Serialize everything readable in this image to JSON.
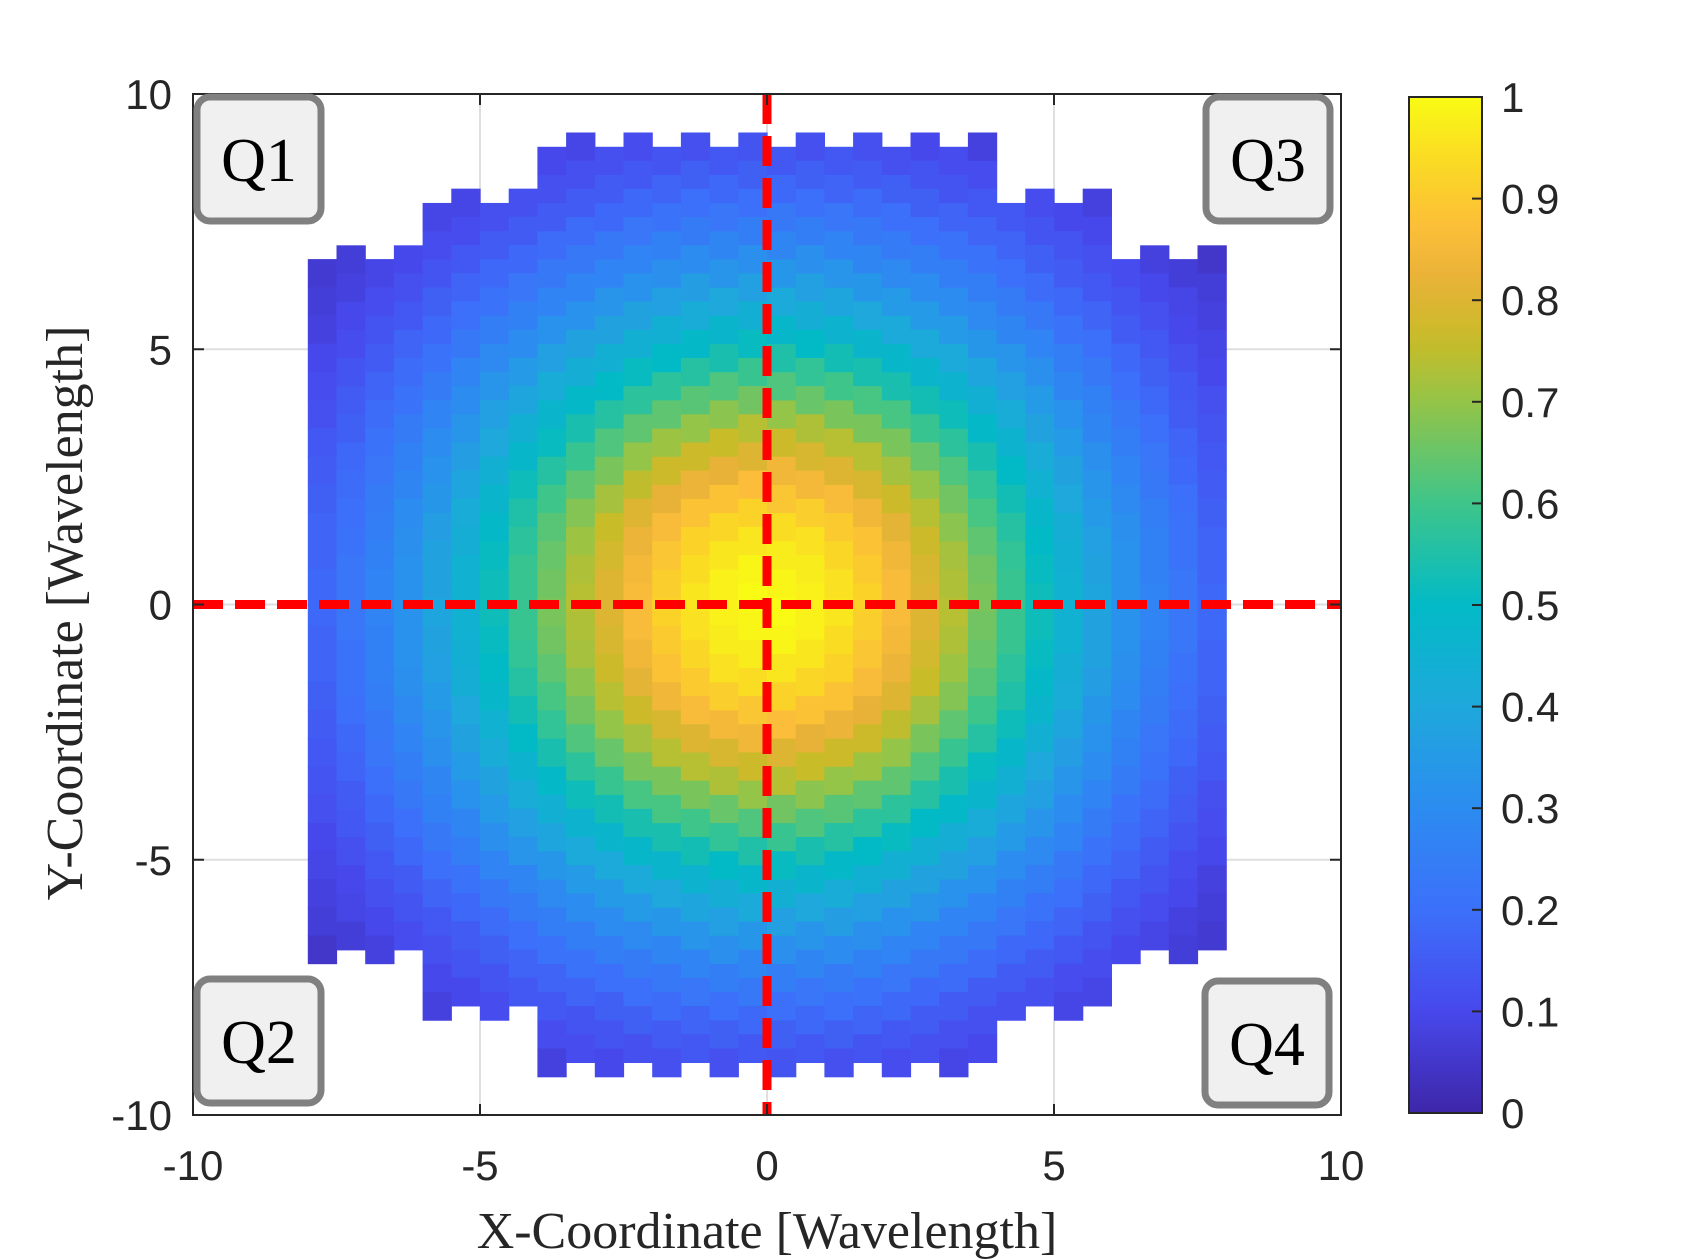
{
  "chart_data": {
    "type": "heatmap",
    "xlabel": "X-Coordinate [Wavelength]",
    "ylabel": "Y-Coordinate [Wavelength]",
    "xlim": [
      -10,
      10
    ],
    "ylim": [
      -10,
      10
    ],
    "xticks": [
      -10,
      -5,
      0,
      5,
      10
    ],
    "yticks": [
      -10,
      -5,
      0,
      5,
      10
    ],
    "xtick_labels": [
      "-10",
      "-5",
      "0",
      "5",
      "10"
    ],
    "ytick_labels": [
      "-10",
      "-5",
      "0",
      "5",
      "10"
    ],
    "grid": true,
    "colorbar": {
      "colormap": "parula",
      "range": [
        0,
        1
      ],
      "ticks": [
        0,
        0.1,
        0.2,
        0.3,
        0.4,
        0.5,
        0.6,
        0.7,
        0.8,
        0.9,
        1
      ],
      "tick_labels": [
        "0",
        "0.1",
        "0.2",
        "0.3",
        "0.4",
        "0.5",
        "0.6",
        "0.7",
        "0.8",
        "0.9",
        "1"
      ],
      "placement": "right"
    },
    "reference_lines": [
      {
        "orientation": "vertical",
        "value": 0,
        "style": "dashed",
        "color": "#ff0000"
      },
      {
        "orientation": "horizontal",
        "value": 0,
        "style": "dashed",
        "color": "#ff0000"
      }
    ],
    "quadrant_labels": [
      {
        "text": "Q1",
        "corner": "top-left"
      },
      {
        "text": "Q3",
        "corner": "top-right"
      },
      {
        "text": "Q2",
        "corner": "bottom-left"
      },
      {
        "text": "Q4",
        "corner": "bottom-right"
      }
    ],
    "cell_width": 0.5,
    "cell_height": 0.552,
    "columns": [
      {
        "x": -7.75,
        "y_top": 6.49,
        "z": [
          0.06,
          0.07,
          0.08,
          0.1,
          0.11,
          0.12,
          0.14,
          0.15,
          0.16,
          0.17,
          0.17,
          0.18,
          0.18,
          0.17,
          0.17,
          0.16,
          0.15,
          0.14,
          0.13,
          0.12,
          0.1,
          0.09,
          0.08,
          0.07,
          0.05
        ]
      },
      {
        "x": -7.25,
        "y_top": 6.76,
        "z": [
          0.07,
          0.08,
          0.1,
          0.11,
          0.13,
          0.15,
          0.16,
          0.18,
          0.19,
          0.2,
          0.21,
          0.22,
          0.22,
          0.22,
          0.21,
          0.21,
          0.2,
          0.18,
          0.17,
          0.15,
          0.14,
          0.12,
          0.1,
          0.09,
          0.07
        ]
      },
      {
        "x": -6.75,
        "y_top": 6.49,
        "z": [
          0.09,
          0.11,
          0.13,
          0.15,
          0.17,
          0.19,
          0.21,
          0.22,
          0.24,
          0.25,
          0.26,
          0.27,
          0.27,
          0.26,
          0.26,
          0.25,
          0.23,
          0.22,
          0.2,
          0.18,
          0.16,
          0.14,
          0.12,
          0.1,
          0.08
        ]
      },
      {
        "x": -6.25,
        "y_top": 6.76,
        "z": [
          0.1,
          0.12,
          0.14,
          0.17,
          0.19,
          0.21,
          0.24,
          0.26,
          0.28,
          0.3,
          0.31,
          0.32,
          0.32,
          0.32,
          0.32,
          0.31,
          0.29,
          0.27,
          0.25,
          0.23,
          0.2,
          0.18,
          0.15,
          0.13,
          0.11
        ]
      },
      {
        "x": -5.75,
        "y_top": 7.59,
        "z": [
          0.09,
          0.11,
          0.13,
          0.16,
          0.18,
          0.21,
          0.24,
          0.27,
          0.3,
          0.32,
          0.34,
          0.36,
          0.38,
          0.38,
          0.39,
          0.38,
          0.37,
          0.35,
          0.33,
          0.31,
          0.28,
          0.26,
          0.23,
          0.2,
          0.17,
          0.14,
          0.12,
          0.1,
          0.08
        ]
      },
      {
        "x": -5.25,
        "y_top": 7.87,
        "z": [
          0.09,
          0.11,
          0.14,
          0.17,
          0.2,
          0.23,
          0.27,
          0.3,
          0.33,
          0.36,
          0.39,
          0.42,
          0.43,
          0.45,
          0.45,
          0.45,
          0.44,
          0.43,
          0.4,
          0.38,
          0.35,
          0.32,
          0.28,
          0.25,
          0.21,
          0.18,
          0.15,
          0.13,
          0.1
        ]
      },
      {
        "x": -4.75,
        "y_top": 7.59,
        "z": [
          0.12,
          0.15,
          0.18,
          0.21,
          0.25,
          0.29,
          0.33,
          0.37,
          0.4,
          0.44,
          0.47,
          0.49,
          0.51,
          0.52,
          0.52,
          0.51,
          0.5,
          0.48,
          0.45,
          0.42,
          0.38,
          0.35,
          0.31,
          0.27,
          0.23,
          0.19,
          0.16,
          0.13,
          0.11
        ]
      },
      {
        "x": -4.25,
        "y_top": 7.87,
        "z": [
          0.12,
          0.15,
          0.18,
          0.22,
          0.26,
          0.3,
          0.35,
          0.39,
          0.44,
          0.48,
          0.52,
          0.55,
          0.57,
          0.59,
          0.59,
          0.59,
          0.58,
          0.56,
          0.53,
          0.5,
          0.46,
          0.42,
          0.37,
          0.33,
          0.28,
          0.24,
          0.2,
          0.17,
          0.14
        ]
      },
      {
        "x": -3.75,
        "y_top": 8.69,
        "z": [
          0.1,
          0.12,
          0.15,
          0.19,
          0.23,
          0.27,
          0.32,
          0.37,
          0.42,
          0.47,
          0.51,
          0.56,
          0.6,
          0.63,
          0.65,
          0.66,
          0.67,
          0.66,
          0.64,
          0.61,
          0.58,
          0.54,
          0.49,
          0.44,
          0.39,
          0.34,
          0.29,
          0.25,
          0.21,
          0.17,
          0.14,
          0.11,
          0.08
        ]
      },
      {
        "x": -3.25,
        "y_top": 8.97,
        "z": [
          0.09,
          0.12,
          0.15,
          0.19,
          0.23,
          0.27,
          0.32,
          0.38,
          0.43,
          0.49,
          0.54,
          0.59,
          0.64,
          0.68,
          0.71,
          0.73,
          0.74,
          0.73,
          0.72,
          0.69,
          0.66,
          0.62,
          0.57,
          0.52,
          0.46,
          0.41,
          0.35,
          0.3,
          0.25,
          0.21,
          0.17,
          0.13,
          0.11
        ]
      },
      {
        "x": -2.75,
        "y_top": 8.69,
        "z": [
          0.12,
          0.15,
          0.18,
          0.23,
          0.27,
          0.33,
          0.38,
          0.44,
          0.5,
          0.56,
          0.62,
          0.67,
          0.72,
          0.76,
          0.78,
          0.8,
          0.8,
          0.79,
          0.77,
          0.74,
          0.7,
          0.65,
          0.59,
          0.53,
          0.47,
          0.41,
          0.35,
          0.3,
          0.25,
          0.2,
          0.16,
          0.13,
          0.1
        ]
      },
      {
        "x": -2.25,
        "y_top": 8.97,
        "z": [
          0.11,
          0.14,
          0.18,
          0.22,
          0.27,
          0.32,
          0.38,
          0.44,
          0.51,
          0.57,
          0.64,
          0.7,
          0.75,
          0.8,
          0.83,
          0.85,
          0.86,
          0.86,
          0.84,
          0.81,
          0.77,
          0.72,
          0.67,
          0.61,
          0.54,
          0.48,
          0.41,
          0.35,
          0.29,
          0.24,
          0.2,
          0.16,
          0.12
        ]
      },
      {
        "x": -1.75,
        "y_top": 8.69,
        "z": [
          0.13,
          0.17,
          0.21,
          0.26,
          0.31,
          0.37,
          0.44,
          0.5,
          0.57,
          0.64,
          0.71,
          0.77,
          0.82,
          0.86,
          0.89,
          0.91,
          0.92,
          0.9,
          0.88,
          0.84,
          0.79,
          0.74,
          0.67,
          0.61,
          0.54,
          0.47,
          0.4,
          0.34,
          0.28,
          0.23,
          0.19,
          0.15,
          0.12
        ]
      },
      {
        "x": -1.25,
        "y_top": 8.97,
        "z": [
          0.12,
          0.16,
          0.2,
          0.24,
          0.3,
          0.36,
          0.42,
          0.49,
          0.56,
          0.63,
          0.7,
          0.77,
          0.83,
          0.88,
          0.92,
          0.94,
          0.96,
          0.95,
          0.93,
          0.9,
          0.86,
          0.8,
          0.74,
          0.67,
          0.6,
          0.53,
          0.46,
          0.39,
          0.33,
          0.27,
          0.22,
          0.17,
          0.14
        ]
      },
      {
        "x": -0.75,
        "y_top": 8.69,
        "z": [
          0.14,
          0.18,
          0.22,
          0.28,
          0.33,
          0.4,
          0.47,
          0.54,
          0.62,
          0.69,
          0.76,
          0.82,
          0.88,
          0.93,
          0.96,
          0.98,
          0.98,
          0.97,
          0.95,
          0.91,
          0.85,
          0.79,
          0.73,
          0.65,
          0.58,
          0.5,
          0.43,
          0.37,
          0.31,
          0.25,
          0.2,
          0.16,
          0.12
        ]
      },
      {
        "x": -0.25,
        "y_top": 8.97,
        "z": [
          0.13,
          0.16,
          0.2,
          0.25,
          0.31,
          0.37,
          0.44,
          0.51,
          0.59,
          0.66,
          0.74,
          0.8,
          0.87,
          0.92,
          0.96,
          0.99,
          1.0,
          0.99,
          0.97,
          0.94,
          0.89,
          0.84,
          0.77,
          0.7,
          0.62,
          0.55,
          0.48,
          0.41,
          0.34,
          0.28,
          0.23,
          0.18,
          0.14
        ]
      },
      {
        "x": 0.25,
        "y_top": 8.69,
        "z": [
          0.14,
          0.18,
          0.23,
          0.28,
          0.34,
          0.41,
          0.48,
          0.55,
          0.62,
          0.7,
          0.77,
          0.84,
          0.89,
          0.94,
          0.97,
          0.99,
          1.0,
          0.99,
          0.96,
          0.92,
          0.87,
          0.8,
          0.74,
          0.66,
          0.59,
          0.51,
          0.44,
          0.37,
          0.31,
          0.25,
          0.2,
          0.16,
          0.13
        ]
      },
      {
        "x": 0.75,
        "y_top": 8.97,
        "z": [
          0.12,
          0.16,
          0.2,
          0.25,
          0.31,
          0.37,
          0.43,
          0.5,
          0.58,
          0.65,
          0.73,
          0.79,
          0.85,
          0.91,
          0.95,
          0.97,
          0.98,
          0.98,
          0.96,
          0.93,
          0.88,
          0.82,
          0.76,
          0.69,
          0.62,
          0.54,
          0.47,
          0.4,
          0.33,
          0.28,
          0.22,
          0.18,
          0.14
        ]
      },
      {
        "x": 1.25,
        "y_top": 8.69,
        "z": [
          0.14,
          0.17,
          0.22,
          0.27,
          0.33,
          0.39,
          0.46,
          0.53,
          0.6,
          0.67,
          0.74,
          0.8,
          0.86,
          0.9,
          0.93,
          0.95,
          0.96,
          0.94,
          0.92,
          0.88,
          0.83,
          0.77,
          0.7,
          0.63,
          0.56,
          0.49,
          0.42,
          0.36,
          0.3,
          0.24,
          0.2,
          0.16,
          0.12
        ]
      },
      {
        "x": 1.75,
        "y_top": 8.97,
        "z": [
          0.12,
          0.15,
          0.19,
          0.23,
          0.28,
          0.34,
          0.4,
          0.47,
          0.54,
          0.61,
          0.67,
          0.74,
          0.79,
          0.84,
          0.88,
          0.9,
          0.92,
          0.91,
          0.89,
          0.86,
          0.82,
          0.77,
          0.71,
          0.64,
          0.57,
          0.5,
          0.44,
          0.37,
          0.31,
          0.26,
          0.21,
          0.17,
          0.13
        ]
      },
      {
        "x": 2.25,
        "y_top": 8.69,
        "z": [
          0.12,
          0.16,
          0.2,
          0.24,
          0.29,
          0.35,
          0.41,
          0.48,
          0.54,
          0.61,
          0.67,
          0.72,
          0.77,
          0.81,
          0.84,
          0.86,
          0.86,
          0.85,
          0.83,
          0.8,
          0.75,
          0.7,
          0.64,
          0.57,
          0.51,
          0.44,
          0.38,
          0.32,
          0.27,
          0.22,
          0.18,
          0.14,
          0.11
        ]
      },
      {
        "x": 2.75,
        "y_top": 8.97,
        "z": [
          0.1,
          0.13,
          0.16,
          0.2,
          0.25,
          0.3,
          0.35,
          0.41,
          0.47,
          0.53,
          0.59,
          0.65,
          0.7,
          0.74,
          0.77,
          0.79,
          0.8,
          0.8,
          0.78,
          0.76,
          0.72,
          0.67,
          0.62,
          0.56,
          0.5,
          0.44,
          0.38,
          0.33,
          0.27,
          0.23,
          0.18,
          0.15,
          0.12
        ]
      },
      {
        "x": 3.25,
        "y_top": 8.69,
        "z": [
          0.11,
          0.13,
          0.17,
          0.21,
          0.25,
          0.3,
          0.35,
          0.41,
          0.46,
          0.52,
          0.57,
          0.62,
          0.66,
          0.69,
          0.72,
          0.73,
          0.74,
          0.73,
          0.71,
          0.68,
          0.64,
          0.59,
          0.54,
          0.49,
          0.43,
          0.38,
          0.32,
          0.27,
          0.23,
          0.19,
          0.15,
          0.12,
          0.09
        ]
      },
      {
        "x": 3.75,
        "y_top": 8.97,
        "z": [
          0.08,
          0.11,
          0.14,
          0.17,
          0.21,
          0.25,
          0.29,
          0.34,
          0.39,
          0.44,
          0.49,
          0.54,
          0.58,
          0.61,
          0.64,
          0.66,
          0.67,
          0.66,
          0.65,
          0.63,
          0.6,
          0.56,
          0.51,
          0.47,
          0.42,
          0.37,
          0.32,
          0.27,
          0.23,
          0.19,
          0.15,
          0.12,
          0.1
        ]
      },
      {
        "x": 4.25,
        "y_top": 7.59,
        "z": [
          0.14,
          0.17,
          0.2,
          0.24,
          0.28,
          0.33,
          0.37,
          0.42,
          0.46,
          0.5,
          0.53,
          0.56,
          0.58,
          0.59,
          0.59,
          0.59,
          0.57,
          0.55,
          0.52,
          0.48,
          0.44,
          0.39,
          0.35,
          0.3,
          0.26,
          0.22,
          0.18,
          0.15,
          0.12
        ]
      },
      {
        "x": 4.75,
        "y_top": 7.87,
        "z": [
          0.11,
          0.13,
          0.16,
          0.19,
          0.23,
          0.27,
          0.31,
          0.35,
          0.38,
          0.42,
          0.45,
          0.48,
          0.5,
          0.51,
          0.52,
          0.52,
          0.51,
          0.49,
          0.47,
          0.44,
          0.4,
          0.37,
          0.33,
          0.29,
          0.25,
          0.21,
          0.18,
          0.15,
          0.12
        ]
      },
      {
        "x": 5.25,
        "y_top": 7.59,
        "z": [
          0.1,
          0.13,
          0.15,
          0.18,
          0.21,
          0.25,
          0.28,
          0.32,
          0.35,
          0.38,
          0.4,
          0.43,
          0.44,
          0.45,
          0.45,
          0.45,
          0.43,
          0.42,
          0.39,
          0.36,
          0.33,
          0.3,
          0.27,
          0.23,
          0.2,
          0.17,
          0.14,
          0.11,
          0.09
        ]
      },
      {
        "x": 5.75,
        "y_top": 7.87,
        "z": [
          0.08,
          0.1,
          0.12,
          0.14,
          0.17,
          0.2,
          0.23,
          0.26,
          0.28,
          0.31,
          0.33,
          0.35,
          0.37,
          0.38,
          0.39,
          0.38,
          0.38,
          0.36,
          0.34,
          0.32,
          0.3,
          0.27,
          0.24,
          0.21,
          0.18,
          0.16,
          0.13,
          0.11,
          0.09
        ]
      },
      {
        "x": 6.25,
        "y_top": 6.49,
        "z": [
          0.11,
          0.13,
          0.15,
          0.18,
          0.2,
          0.23,
          0.25,
          0.27,
          0.29,
          0.31,
          0.32,
          0.32,
          0.32,
          0.32,
          0.31,
          0.3,
          0.28,
          0.26,
          0.24,
          0.21,
          0.19,
          0.17,
          0.14,
          0.12,
          0.1
        ]
      },
      {
        "x": 6.75,
        "y_top": 6.76,
        "z": [
          0.08,
          0.1,
          0.12,
          0.14,
          0.16,
          0.18,
          0.2,
          0.22,
          0.23,
          0.25,
          0.26,
          0.26,
          0.27,
          0.27,
          0.26,
          0.25,
          0.24,
          0.22,
          0.21,
          0.19,
          0.17,
          0.15,
          0.13,
          0.11,
          0.09
        ]
      },
      {
        "x": 7.25,
        "y_top": 6.49,
        "z": [
          0.07,
          0.09,
          0.1,
          0.12,
          0.14,
          0.15,
          0.17,
          0.18,
          0.2,
          0.21,
          0.21,
          0.22,
          0.22,
          0.22,
          0.21,
          0.2,
          0.19,
          0.18,
          0.16,
          0.15,
          0.13,
          0.11,
          0.1,
          0.08,
          0.07
        ]
      },
      {
        "x": 7.75,
        "y_top": 6.76,
        "z": [
          0.05,
          0.07,
          0.08,
          0.09,
          0.1,
          0.12,
          0.13,
          0.14,
          0.15,
          0.16,
          0.17,
          0.17,
          0.18,
          0.18,
          0.17,
          0.17,
          0.16,
          0.15,
          0.14,
          0.12,
          0.11,
          0.1,
          0.08,
          0.07,
          0.06
        ]
      }
    ]
  },
  "colors": {
    "reference_line": "#ff0000",
    "quadrant_box_fill": "#f0f0f0",
    "quadrant_box_border": "#808080",
    "axis": "#262626",
    "grid": "#dfdfdf"
  }
}
